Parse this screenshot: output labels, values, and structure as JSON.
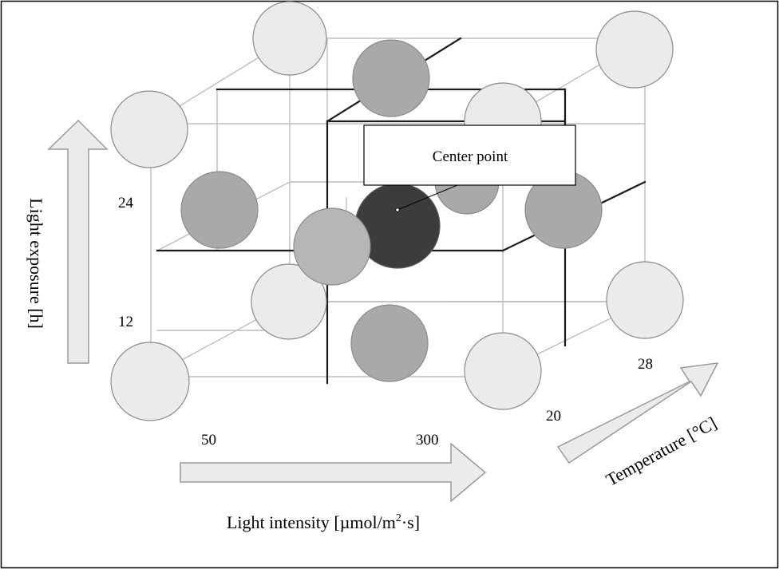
{
  "figure": {
    "callout_label": "Center point",
    "axes": {
      "light_exposure": {
        "label": "Light exposure [h]",
        "levels": [
          "12",
          "24"
        ]
      },
      "light_intensity": {
        "label_main": "Light intensity [µmol/m",
        "label_sup": "2",
        "label_tail": "·s]",
        "levels": [
          "50",
          "300"
        ]
      },
      "temperature": {
        "label": "Temperature [°C]",
        "levels": [
          "20",
          "28"
        ]
      }
    },
    "point_types": [
      {
        "type": "factorial",
        "color": "#ebebeb"
      },
      {
        "type": "axial",
        "color": "#a9a9a9"
      },
      {
        "type": "axial-front",
        "color": "#b6b6b6"
      },
      {
        "type": "center",
        "color": "#3c3c3c"
      }
    ],
    "colors": {
      "arrow_fill": "#ebebeb",
      "arrow_stroke": "#9a9a9a",
      "edge_dark": "#1a1a1a",
      "edge_light": "#bdbdbd"
    }
  }
}
